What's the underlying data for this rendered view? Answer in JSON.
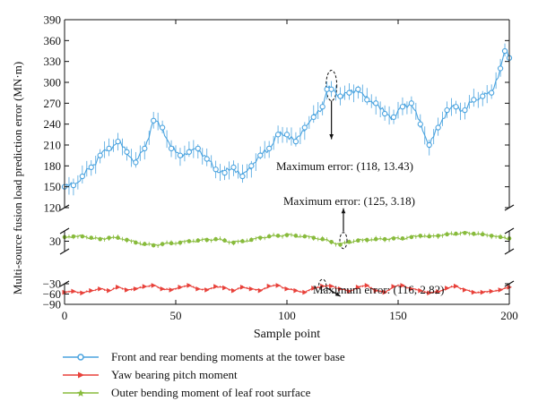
{
  "chart_data": {
    "type": "line",
    "xlabel": "Sample point",
    "ylabel": "Multi-source fusion load prediction error (MN·m)",
    "xlim": [
      0,
      200
    ],
    "x_ticks": [
      "0",
      "50",
      "100",
      "150",
      "200"
    ],
    "y_axis_breaks": true,
    "y_segments": [
      {
        "range": [
          -90,
          -30
        ],
        "ticks": [
          "-90",
          "-60",
          "-30"
        ]
      },
      {
        "range": [
          15,
          45
        ],
        "ticks": [
          "30"
        ]
      },
      {
        "range": [
          120,
          390
        ],
        "ticks": [
          "120",
          "150",
          "180",
          "210",
          "240",
          "270",
          "300",
          "330",
          "360",
          "390"
        ]
      }
    ],
    "legend_position": "bottom",
    "series": [
      {
        "name": "Front and rear bending moments at the tower base",
        "color": "#4aa3df",
        "marker": "circle",
        "error_bars": true,
        "x": [
          0,
          4,
          8,
          12,
          16,
          20,
          24,
          28,
          32,
          36,
          40,
          44,
          48,
          52,
          56,
          60,
          64,
          68,
          72,
          76,
          80,
          84,
          88,
          92,
          96,
          100,
          104,
          108,
          112,
          116,
          118,
          120,
          124,
          128,
          132,
          136,
          140,
          144,
          148,
          152,
          156,
          160,
          164,
          168,
          172,
          176,
          180,
          184,
          188,
          192,
          196,
          198,
          200
        ],
        "values": [
          150,
          152,
          165,
          178,
          195,
          205,
          215,
          200,
          185,
          205,
          245,
          235,
          205,
          195,
          200,
          205,
          190,
          175,
          170,
          178,
          165,
          180,
          195,
          205,
          225,
          225,
          215,
          235,
          250,
          265,
          290,
          290,
          280,
          285,
          290,
          275,
          270,
          255,
          250,
          265,
          270,
          240,
          210,
          235,
          260,
          265,
          260,
          275,
          280,
          285,
          320,
          345,
          335
        ]
      },
      {
        "name": "Yaw bearing pitch moment",
        "color": "#e8413a",
        "marker": "triangle",
        "error_bars": true,
        "x": [
          0,
          4,
          8,
          12,
          16,
          20,
          24,
          28,
          32,
          36,
          40,
          44,
          48,
          52,
          56,
          60,
          64,
          68,
          72,
          76,
          80,
          84,
          88,
          92,
          96,
          100,
          104,
          108,
          112,
          116,
          120,
          124,
          128,
          132,
          136,
          140,
          144,
          148,
          152,
          156,
          160,
          164,
          168,
          172,
          176,
          180,
          184,
          188,
          192,
          196,
          200
        ],
        "values": [
          -55,
          -52,
          -57,
          -50,
          -45,
          -50,
          -40,
          -48,
          -45,
          -38,
          -35,
          -45,
          -48,
          -40,
          -35,
          -45,
          -48,
          -38,
          -42,
          -50,
          -40,
          -45,
          -50,
          -37,
          -35,
          -45,
          -50,
          -55,
          -43,
          -37,
          -37,
          -45,
          -52,
          -40,
          -35,
          -50,
          -55,
          -38,
          -35,
          -45,
          -50,
          -57,
          -53,
          -43,
          -37,
          -48,
          -55,
          -55,
          -52,
          -48,
          -40
        ]
      },
      {
        "name": "Outer bending moment of leaf root surface",
        "color": "#88bb3c",
        "marker": "star",
        "error_bars": true,
        "x": [
          0,
          4,
          8,
          12,
          16,
          20,
          24,
          28,
          32,
          36,
          40,
          44,
          48,
          52,
          56,
          60,
          64,
          68,
          72,
          76,
          80,
          84,
          88,
          92,
          96,
          100,
          104,
          108,
          112,
          116,
          120,
          124,
          128,
          132,
          136,
          140,
          144,
          148,
          152,
          156,
          160,
          164,
          168,
          172,
          176,
          180,
          184,
          188,
          192,
          196,
          200
        ],
        "values": [
          36,
          37,
          37,
          35,
          33,
          35,
          35,
          32,
          28,
          26,
          24,
          26,
          27,
          28,
          30,
          31,
          32,
          33,
          31,
          28,
          30,
          32,
          35,
          37,
          38,
          39,
          38,
          37,
          35,
          33,
          29,
          25,
          29,
          31,
          32,
          33,
          33,
          34,
          34,
          36,
          38,
          37,
          38,
          40,
          41,
          42,
          41,
          40,
          38,
          36,
          34
        ]
      }
    ],
    "annotations": [
      {
        "text": "Maximum error: (118, 13.43)",
        "x": 118,
        "y": 280
      },
      {
        "text": "Maximum error: (125, 3.18)",
        "x": 125,
        "y": 25
      },
      {
        "text": "Maximum error: (116, 2.82)",
        "x": 116,
        "y": -37
      }
    ]
  }
}
